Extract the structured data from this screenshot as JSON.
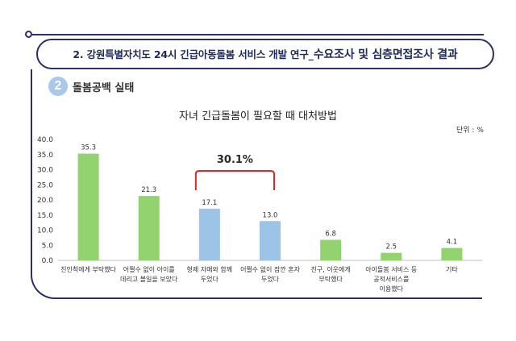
{
  "header": {
    "title_prefix": "2. 강원특별자치도 24시 긴급아동돌봄 서비스 개발 연구_",
    "title_highlight": "수요조사 및 심층면접조사 결과"
  },
  "section": {
    "number": "2",
    "title": "돌봄공백 실태"
  },
  "chart_data": {
    "type": "bar",
    "title": "자녀 긴급돌봄이 필요할 때 대처방법",
    "unit": "단위 : %",
    "ylim": [
      0,
      40
    ],
    "yticks": [
      "0.0",
      "5.0",
      "10.0",
      "15.0",
      "20.0",
      "25.0",
      "30.0",
      "35.0",
      "40.0"
    ],
    "grid": false,
    "categories": [
      [
        "친인척에게 부탁했다"
      ],
      [
        "어쩔수 없이 아이를",
        "데리고 볼일을 보았다"
      ],
      [
        "형제 자매와 함께",
        "두었다"
      ],
      [
        "어쩔수 없이 잠깐 혼자",
        "두었다"
      ],
      [
        "친구, 이웃에게",
        "부탁했다"
      ],
      [
        "아이돌봄 서비스 등",
        "공적서비스를",
        "이용했다"
      ],
      [
        "기타"
      ]
    ],
    "values": [
      35.3,
      21.3,
      17.1,
      13.0,
      6.8,
      2.5,
      4.1
    ],
    "value_labels": [
      "35.3",
      "21.3",
      "17.1",
      "13.0",
      "6.8",
      "2.5",
      "4.1"
    ],
    "bar_colors": [
      "#92d26f",
      "#92d26f",
      "#9dc3e6",
      "#9dc3e6",
      "#92d26f",
      "#92d26f",
      "#92d26f"
    ],
    "annotation": {
      "text": "30.1%",
      "spans": [
        2,
        3
      ],
      "color": "#e02828"
    }
  },
  "colors": {
    "frame": "#2b2f66",
    "green_bar": "#92d26f",
    "blue_bar": "#9dc3e6",
    "bracket": "#e02828"
  }
}
